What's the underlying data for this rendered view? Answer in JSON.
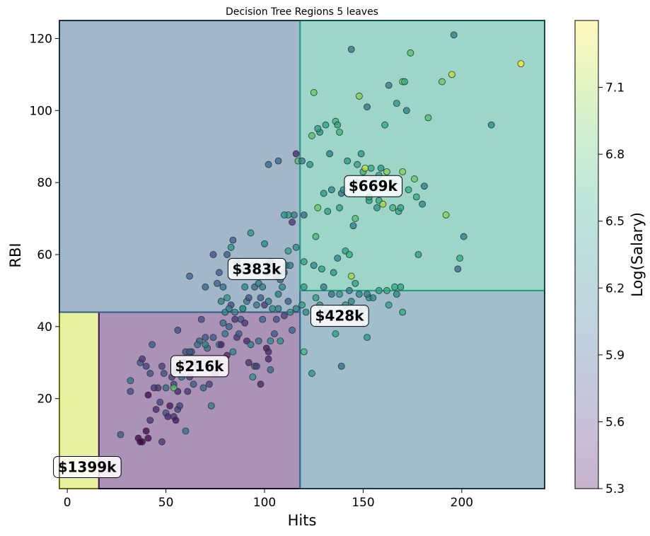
{
  "chart_data": {
    "type": "scatter",
    "title": "Decision Tree Regions 5 leaves",
    "xlabel": "Hits",
    "ylabel": "RBI",
    "xlim": [
      -4,
      242
    ],
    "ylim": [
      -5,
      125
    ],
    "xticks": [
      "0",
      "50",
      "100",
      "150",
      "200"
    ],
    "yticks": [
      "20",
      "40",
      "60",
      "80",
      "100",
      "120"
    ],
    "grid": false,
    "colorbar": {
      "label": "Log(Salary)",
      "range": [
        5.3,
        7.4
      ],
      "ticks": [
        "5.3",
        "5.6",
        "5.9",
        "6.2",
        "6.5",
        "6.8",
        "7.1"
      ],
      "colormap": "viridis"
    },
    "regions": [
      {
        "label": "$1399k",
        "x": [
          -4,
          16
        ],
        "y": [
          -5,
          44
        ],
        "value": 7.24
      },
      {
        "label": "$216k",
        "x": [
          16,
          118
        ],
        "y": [
          -5,
          44
        ],
        "value": 5.38
      },
      {
        "label": "$383k",
        "x": [
          -4,
          118
        ],
        "y": [
          44,
          125
        ],
        "value": 5.95
      },
      {
        "label": "$428k",
        "x": [
          118,
          242
        ],
        "y": [
          -5,
          50
        ],
        "value": 6.06
      },
      {
        "label": "$669k",
        "x": [
          118,
          242
        ],
        "y": [
          50,
          125
        ],
        "value": 6.51
      }
    ],
    "points": [
      [
        41,
        9,
        5.2
      ],
      [
        40,
        11,
        5.3
      ],
      [
        38,
        8,
        5.2
      ],
      [
        36,
        9,
        5.2
      ],
      [
        37,
        8,
        5.3
      ],
      [
        42,
        14,
        5.6
      ],
      [
        41,
        21,
        5.3
      ],
      [
        45,
        17,
        5.5
      ],
      [
        46,
        23,
        5.6
      ],
      [
        48,
        8,
        5.6
      ],
      [
        50,
        16,
        5.8
      ],
      [
        51,
        15,
        5.5
      ],
      [
        54,
        15,
        5.6
      ],
      [
        55,
        14,
        5.4
      ],
      [
        56,
        17,
        5.7
      ],
      [
        57,
        18,
        5.7
      ],
      [
        60,
        11,
        6.1
      ],
      [
        27,
        10,
        5.9
      ],
      [
        32,
        22,
        5.8
      ],
      [
        32,
        25,
        6.1
      ],
      [
        37,
        30,
        5.9
      ],
      [
        38,
        31,
        5.6
      ],
      [
        40,
        29,
        5.7
      ],
      [
        42,
        27,
        5.8
      ],
      [
        43,
        35,
        5.9
      ],
      [
        44,
        23,
        5.6
      ],
      [
        47,
        19,
        5.7
      ],
      [
        48,
        29,
        5.7
      ],
      [
        49,
        27,
        5.8
      ],
      [
        50,
        23,
        6.0
      ],
      [
        52,
        18,
        5.4
      ],
      [
        53,
        26,
        5.7
      ],
      [
        54,
        24,
        5.7
      ],
      [
        55,
        28,
        6.0
      ],
      [
        56,
        22,
        5.5
      ],
      [
        58,
        26,
        6.2
      ],
      [
        59,
        30,
        5.8
      ],
      [
        60,
        33,
        5.8
      ],
      [
        61,
        22,
        5.6
      ],
      [
        62,
        26,
        5.7
      ],
      [
        63,
        33,
        5.8
      ],
      [
        64,
        24,
        5.9
      ],
      [
        65,
        30,
        5.7
      ],
      [
        66,
        29,
        5.6
      ],
      [
        67,
        36,
        6.0
      ],
      [
        68,
        42,
        5.8
      ],
      [
        69,
        23,
        6.0
      ],
      [
        70,
        37,
        5.9
      ],
      [
        71,
        34,
        6.1
      ],
      [
        72,
        24,
        5.7
      ],
      [
        73,
        18,
        6.2
      ],
      [
        74,
        37,
        5.9
      ],
      [
        75,
        27,
        5.8
      ],
      [
        76,
        30,
        5.9
      ],
      [
        77,
        35,
        6.2
      ],
      [
        78,
        35,
        5.5
      ],
      [
        79,
        41,
        6.1
      ],
      [
        80,
        38,
        6.2
      ],
      [
        81,
        32,
        5.5
      ],
      [
        82,
        40,
        6.0
      ],
      [
        83,
        46,
        5.8
      ],
      [
        84,
        33,
        6.3
      ],
      [
        85,
        42,
        5.6
      ],
      [
        86,
        37,
        5.6
      ],
      [
        87,
        38,
        5.9
      ],
      [
        88,
        42,
        5.9
      ],
      [
        89,
        45,
        6.2
      ],
      [
        90,
        41,
        5.6
      ],
      [
        91,
        36,
        5.5
      ],
      [
        92,
        30,
        5.6
      ],
      [
        93,
        35,
        6.2
      ],
      [
        94,
        26,
        6.4
      ],
      [
        95,
        29,
        5.9
      ],
      [
        96,
        29,
        5.7
      ],
      [
        97,
        36,
        6.1
      ],
      [
        98,
        24,
        5.5
      ],
      [
        99,
        42,
        6.0
      ],
      [
        100,
        46,
        5.6
      ],
      [
        101,
        34,
        5.4
      ],
      [
        102,
        33,
        5.5
      ],
      [
        102,
        31,
        5.5
      ],
      [
        103,
        36,
        6.3
      ],
      [
        103,
        28,
        6.0
      ],
      [
        104,
        45,
        6.3
      ],
      [
        105,
        38,
        5.9
      ],
      [
        106,
        42,
        5.8
      ],
      [
        107,
        45,
        6.2
      ],
      [
        108,
        36,
        6.4
      ],
      [
        110,
        43,
        5.7
      ],
      [
        112,
        47,
        5.9
      ],
      [
        113,
        44,
        6.4
      ],
      [
        114,
        39,
        6.0
      ],
      [
        116,
        45,
        6.2
      ],
      [
        56,
        39,
        5.8
      ],
      [
        62,
        33,
        5.9
      ],
      [
        66,
        35,
        6.1
      ],
      [
        70,
        35,
        6.2
      ],
      [
        54,
        23,
        6.8
      ],
      [
        62,
        54,
        6.0
      ],
      [
        70,
        51,
        6.0
      ],
      [
        74,
        60,
        5.8
      ],
      [
        76,
        52,
        6.0
      ],
      [
        77,
        55,
        5.9
      ],
      [
        78,
        47,
        6.2
      ],
      [
        79,
        51,
        6.1
      ],
      [
        80,
        44,
        6.3
      ],
      [
        81,
        48,
        6.4
      ],
      [
        81,
        60,
        5.9
      ],
      [
        82,
        45,
        6.2
      ],
      [
        83,
        62,
        6.4
      ],
      [
        84,
        64,
        5.9
      ],
      [
        85,
        44,
        6.3
      ],
      [
        86,
        58,
        6.0
      ],
      [
        88,
        56,
        6.1
      ],
      [
        89,
        45,
        6.4
      ],
      [
        90,
        51,
        6.3
      ],
      [
        91,
        47,
        6.2
      ],
      [
        92,
        48,
        5.8
      ],
      [
        93,
        66,
        6.4
      ],
      [
        94,
        57,
        6.2
      ],
      [
        95,
        51,
        6.0
      ],
      [
        96,
        46,
        6.1
      ],
      [
        97,
        52,
        6.2
      ],
      [
        98,
        48,
        5.9
      ],
      [
        99,
        51,
        6.2
      ],
      [
        100,
        63,
        6.3
      ],
      [
        101,
        55,
        6.3
      ],
      [
        102,
        47,
        6.2
      ],
      [
        103,
        58,
        6.0
      ],
      [
        104,
        56,
        6.3
      ],
      [
        106,
        54,
        5.8
      ],
      [
        107,
        49,
        6.2
      ],
      [
        108,
        53,
        6.0
      ],
      [
        109,
        51,
        6.3
      ],
      [
        110,
        55,
        6.1
      ],
      [
        111,
        57,
        6.3
      ],
      [
        112,
        61,
        6.5
      ],
      [
        113,
        57,
        6.2
      ],
      [
        114,
        69,
        5.6
      ],
      [
        115,
        71,
        6.2
      ],
      [
        116,
        62,
        6.3
      ],
      [
        116,
        88,
        5.5
      ],
      [
        117,
        86,
        6.8
      ],
      [
        102,
        85,
        6.0
      ],
      [
        107,
        86,
        6.0
      ],
      [
        112,
        71,
        6.5
      ],
      [
        110,
        71,
        6.4
      ],
      [
        119,
        46,
        6.5
      ],
      [
        120,
        33,
        6.7
      ],
      [
        121,
        44,
        6.3
      ],
      [
        124,
        27,
        6.4
      ],
      [
        126,
        48,
        6.5
      ],
      [
        128,
        46,
        6.4
      ],
      [
        130,
        51,
        6.2
      ],
      [
        132,
        44,
        6.4
      ],
      [
        134,
        49,
        6.1
      ],
      [
        136,
        38,
        6.5
      ],
      [
        138,
        49,
        6.4
      ],
      [
        139,
        29,
        6.1
      ],
      [
        141,
        46,
        6.5
      ],
      [
        143,
        50,
        6.2
      ],
      [
        144,
        47,
        6.3
      ],
      [
        145,
        44,
        6.6
      ],
      [
        146,
        52,
        6.5
      ],
      [
        150,
        45,
        6.3
      ],
      [
        152,
        37,
        6.4
      ],
      [
        153,
        48,
        6.4
      ],
      [
        155,
        48,
        6.3
      ],
      [
        158,
        50,
        6.5
      ],
      [
        163,
        46,
        6.5
      ],
      [
        167,
        49,
        6.3
      ],
      [
        169,
        51,
        6.5
      ],
      [
        170,
        44,
        6.6
      ],
      [
        152,
        49,
        6.2
      ],
      [
        148,
        49,
        6.3
      ],
      [
        162,
        50,
        6.6
      ],
      [
        125,
        57,
        6.3
      ],
      [
        120,
        58,
        6.5
      ],
      [
        120,
        51,
        6.5
      ],
      [
        119,
        86,
        6.2
      ],
      [
        120,
        71,
        6.0
      ],
      [
        123,
        85,
        6.4
      ],
      [
        124,
        93,
        6.8
      ],
      [
        125,
        105,
        6.9
      ],
      [
        126,
        65,
        6.7
      ],
      [
        127,
        73,
        6.9
      ],
      [
        128,
        94,
        6.4
      ],
      [
        129,
        56,
        6.5
      ],
      [
        130,
        77,
        6.4
      ],
      [
        131,
        96,
        6.5
      ],
      [
        132,
        72,
        6.5
      ],
      [
        133,
        88,
        6.2
      ],
      [
        134,
        78,
        6.3
      ],
      [
        135,
        55,
        6.4
      ],
      [
        136,
        97,
        6.7
      ],
      [
        137,
        96,
        6.5
      ],
      [
        138,
        94,
        6.7
      ],
      [
        139,
        77,
        6.0
      ],
      [
        140,
        78,
        6.4
      ],
      [
        141,
        61,
        6.5
      ],
      [
        142,
        86,
        6.4
      ],
      [
        143,
        60,
        6.6
      ],
      [
        144,
        117,
        6.1
      ],
      [
        145,
        68,
        6.2
      ],
      [
        146,
        70,
        6.8
      ],
      [
        147,
        85,
        6.5
      ],
      [
        148,
        104,
        7.0
      ],
      [
        149,
        88,
        6.4
      ],
      [
        150,
        83,
        6.7
      ],
      [
        151,
        84,
        7.2
      ],
      [
        152,
        101,
        6.1
      ],
      [
        153,
        75,
        6.5
      ],
      [
        154,
        84,
        6.6
      ],
      [
        155,
        81,
        6.7
      ],
      [
        156,
        79,
        6.6
      ],
      [
        157,
        73,
        6.4
      ],
      [
        158,
        75,
        6.6
      ],
      [
        159,
        84,
        6.4
      ],
      [
        160,
        74,
        7.1
      ],
      [
        161,
        96,
        6.6
      ],
      [
        162,
        83,
        7.0
      ],
      [
        163,
        107,
        6.2
      ],
      [
        165,
        80,
        6.5
      ],
      [
        167,
        102,
        6.4
      ],
      [
        168,
        72,
        6.6
      ],
      [
        169,
        73,
        6.5
      ],
      [
        170,
        108,
        7.0
      ],
      [
        171,
        108,
        6.6
      ],
      [
        172,
        100,
        6.2
      ],
      [
        173,
        78,
        6.6
      ],
      [
        174,
        116,
        6.8
      ],
      [
        176,
        81,
        6.9
      ],
      [
        177,
        76,
        6.6
      ],
      [
        178,
        60,
        6.5
      ],
      [
        180,
        74,
        6.3
      ],
      [
        181,
        79,
        6.2
      ],
      [
        183,
        98,
        6.8
      ],
      [
        190,
        108,
        6.9
      ],
      [
        192,
        71,
        7.0
      ],
      [
        195,
        110,
        7.2
      ],
      [
        196,
        121,
        6.2
      ],
      [
        198,
        56,
        6.0
      ],
      [
        199,
        59,
        6.6
      ],
      [
        201,
        65,
        6.2
      ],
      [
        215,
        96,
        6.3
      ],
      [
        230,
        113,
        7.4
      ],
      [
        137,
        59,
        6.3
      ],
      [
        138,
        73,
        6.5
      ],
      [
        147,
        80,
        6.4
      ],
      [
        153,
        76,
        6.6
      ],
      [
        165,
        73,
        6.7
      ],
      [
        170,
        83,
        7.0
      ],
      [
        144,
        54,
        7.1
      ],
      [
        127,
        95,
        6.5
      ],
      [
        145,
        78,
        6.5
      ],
      [
        158,
        82,
        6.5
      ],
      [
        166,
        51,
        6.6
      ]
    ]
  }
}
